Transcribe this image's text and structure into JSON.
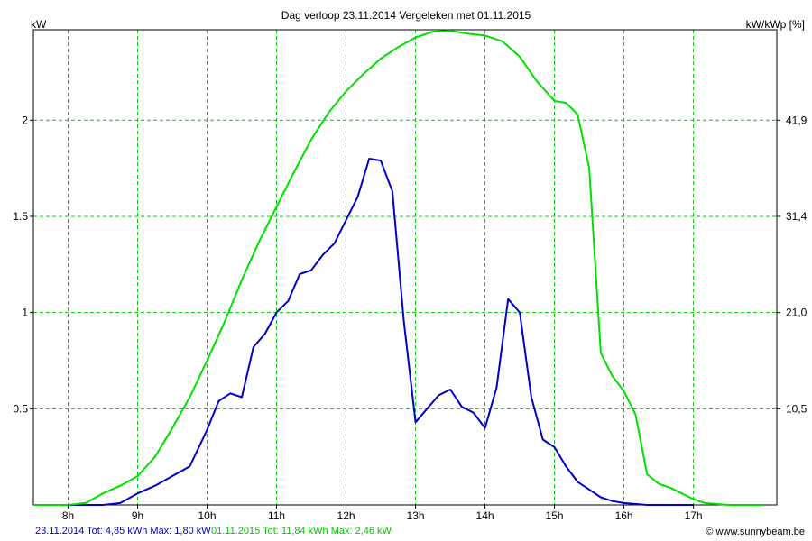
{
  "chart_data": {
    "type": "line",
    "title": "Dag  verloop 23.11.2014   Vergeleken met 01.11.2015",
    "ylabel_left": "kW",
    "ylabel_right": "kW/kWp [%]",
    "xlim": [
      7.5,
      18.2
    ],
    "ylim": [
      0,
      2.47
    ],
    "x_ticks": [
      8,
      9,
      10,
      11,
      12,
      13,
      14,
      15,
      16,
      17
    ],
    "x_tick_labels": [
      "8h",
      "9h",
      "10h",
      "11h",
      "12h",
      "13h",
      "14h",
      "15h",
      "16h",
      "17h"
    ],
    "y_ticks_left": [
      0.5,
      1,
      1.5,
      2
    ],
    "y_tick_labels_left": [
      "0.5",
      "1",
      "1.5",
      "2"
    ],
    "y_tick_labels_right": [
      "10,5",
      "21,0",
      "31,4",
      "41,9"
    ],
    "grid": true,
    "grid_color": "#00c800",
    "series": [
      {
        "name": "23.11.2014",
        "color": "#0000c8",
        "x": [
          7.5,
          7.75,
          8.0,
          8.25,
          8.5,
          8.75,
          9.0,
          9.25,
          9.5,
          9.75,
          10.0,
          10.167,
          10.333,
          10.5,
          10.667,
          10.833,
          11.0,
          11.167,
          11.333,
          11.5,
          11.667,
          11.833,
          12.0,
          12.167,
          12.333,
          12.5,
          12.667,
          12.833,
          13.0,
          13.167,
          13.333,
          13.5,
          13.667,
          13.833,
          14.0,
          14.167,
          14.333,
          14.5,
          14.667,
          14.833,
          15.0,
          15.167,
          15.333,
          15.5,
          15.667,
          15.833,
          16.0,
          16.333,
          16.667,
          17.0
        ],
        "y": [
          0,
          0,
          0,
          0,
          0,
          0.01,
          0.06,
          0.1,
          0.15,
          0.2,
          0.39,
          0.54,
          0.58,
          0.56,
          0.82,
          0.89,
          1.0,
          1.06,
          1.2,
          1.22,
          1.3,
          1.36,
          1.48,
          1.6,
          1.8,
          1.79,
          1.63,
          0.95,
          0.43,
          0.5,
          0.57,
          0.6,
          0.51,
          0.48,
          0.4,
          0.61,
          1.07,
          1.0,
          0.56,
          0.34,
          0.3,
          0.2,
          0.12,
          0.08,
          0.04,
          0.02,
          0.01,
          0,
          0,
          0
        ]
      },
      {
        "name": "01.11.2015",
        "color": "#00e000",
        "x": [
          7.5,
          7.75,
          8.0,
          8.25,
          8.5,
          8.75,
          9.0,
          9.25,
          9.5,
          9.75,
          10.0,
          10.25,
          10.5,
          10.75,
          11.0,
          11.25,
          11.5,
          11.75,
          12.0,
          12.25,
          12.5,
          12.75,
          13.0,
          13.25,
          13.5,
          13.75,
          14.0,
          14.25,
          14.5,
          14.75,
          15.0,
          15.167,
          15.333,
          15.5,
          15.667,
          15.833,
          16.0,
          16.167,
          16.333,
          16.5,
          16.667,
          17.0,
          17.167,
          17.5,
          18.0
        ],
        "y": [
          0,
          0,
          0,
          0.01,
          0.06,
          0.1,
          0.15,
          0.25,
          0.4,
          0.56,
          0.75,
          0.95,
          1.17,
          1.37,
          1.55,
          1.73,
          1.9,
          2.04,
          2.15,
          2.24,
          2.32,
          2.38,
          2.43,
          2.46,
          2.465,
          2.45,
          2.44,
          2.41,
          2.33,
          2.2,
          2.1,
          2.09,
          2.03,
          1.75,
          0.79,
          0.67,
          0.59,
          0.47,
          0.16,
          0.11,
          0.09,
          0.03,
          0.01,
          0,
          0
        ]
      }
    ]
  },
  "footer": {
    "series1_text": "23.11.2014 Tot: 4,85 kWh Max: 1,80 kW",
    "series2_text": "01.11.2015 Tot: 11,84 kWh Max: 2,46 kW",
    "watermark": "© www.sunnybeam.be"
  }
}
